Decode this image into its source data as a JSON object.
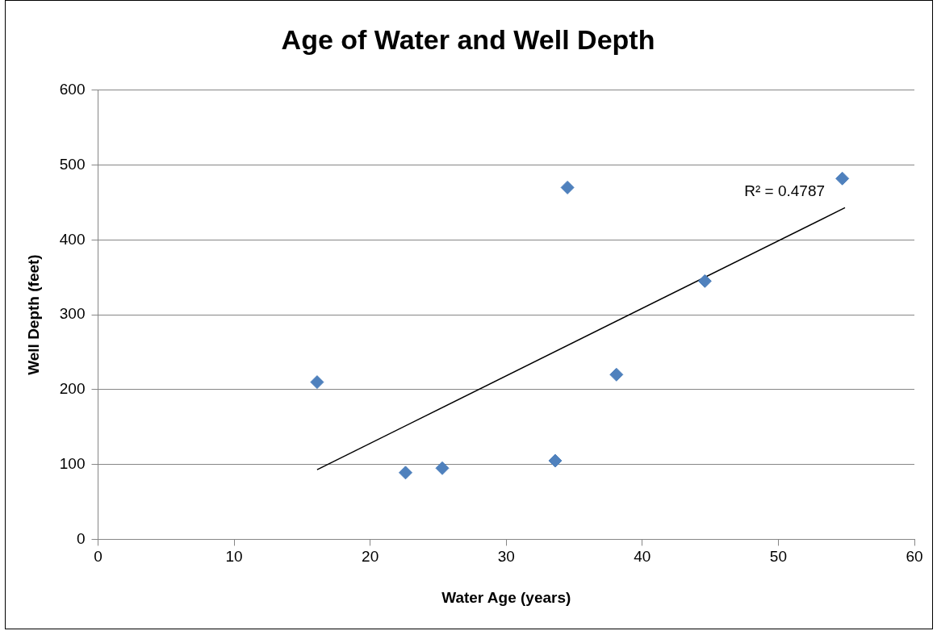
{
  "chart_data": {
    "type": "scatter",
    "title": "Age of Water and Well Depth",
    "xlabel": "Water Age (years)",
    "ylabel": "Well Depth (feet)",
    "series": [
      {
        "color": "#4f81bd",
        "marker": "diamond",
        "x": [
          16.1,
          22.6,
          25.3,
          33.6,
          34.5,
          38.1,
          44.6,
          54.7
        ],
        "values": [
          210,
          89,
          95,
          105,
          470,
          220,
          345,
          482
        ]
      },
      {
        "type": "line",
        "color": "#000000",
        "marker": "none",
        "x": [
          16.1,
          54.9
        ],
        "values": [
          93,
          443
        ]
      }
    ],
    "xlim": [
      0,
      60
    ],
    "xticks": [
      0,
      10,
      20,
      30,
      40,
      50,
      60
    ],
    "ylim": [
      0,
      600
    ],
    "yticks": [
      0,
      100,
      200,
      300,
      400,
      500,
      600
    ],
    "grid": "y",
    "legend": false,
    "annotations": [
      "R² = 0.4787"
    ]
  }
}
